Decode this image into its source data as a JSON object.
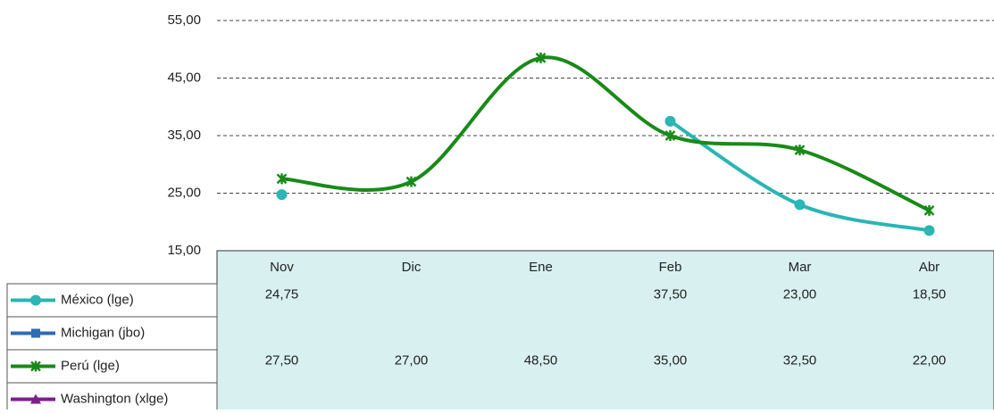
{
  "chart_data": {
    "type": "line",
    "categories": [
      "Nov",
      "Dic",
      "Ene",
      "Feb",
      "Mar",
      "Abr"
    ],
    "series": [
      {
        "name": "México (lge)",
        "color": "#2bb5b5",
        "marker": "circle",
        "values": [
          24.75,
          null,
          null,
          37.5,
          23,
          18.5
        ],
        "value_labels": [
          "24,75",
          null,
          null,
          "37,50",
          "23,00",
          "18,50"
        ]
      },
      {
        "name": "Michigan (jbo)",
        "color": "#2d6db3",
        "marker": "square",
        "values": [
          null,
          null,
          null,
          null,
          null,
          null
        ]
      },
      {
        "name": "Perú (lge)",
        "color": "#198a19",
        "marker": "star",
        "values": [
          27.5,
          27,
          48.5,
          35,
          32.5,
          22
        ],
        "value_labels": [
          "27,50",
          "27,00",
          "48,50",
          "35,00",
          "32,50",
          "22,00"
        ]
      },
      {
        "name": "Washington (xlge)",
        "color": "#7b1f8c",
        "marker": "triangle",
        "values": [
          null,
          null,
          null,
          null,
          null,
          null
        ]
      }
    ],
    "ylim": [
      15,
      55
    ],
    "yticks": [
      {
        "value": 15,
        "label": "15,00"
      },
      {
        "value": 25,
        "label": "25,00"
      },
      {
        "value": 35,
        "label": "35,00"
      },
      {
        "value": 45,
        "label": "45,00"
      },
      {
        "value": 55,
        "label": "55,00"
      }
    ],
    "grid": true,
    "smooth": true
  }
}
